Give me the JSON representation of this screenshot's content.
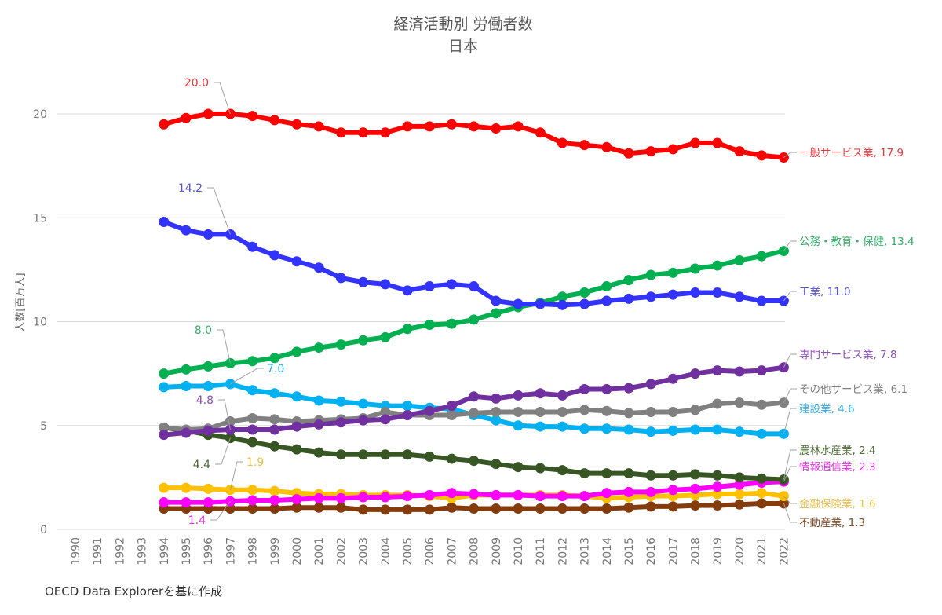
{
  "chart_data": {
    "type": "line",
    "title": "経済活動別 労働者数",
    "subtitle": "日本",
    "xlabel": "",
    "ylabel": "人数[百万人]",
    "ylim": [
      0,
      22
    ],
    "yticks": [
      0,
      5,
      10,
      15,
      20
    ],
    "grid": true,
    "legend": "none (end-of-line labels, right)",
    "x": [
      1990,
      1991,
      1992,
      1993,
      1994,
      1995,
      1996,
      1997,
      1998,
      1999,
      2000,
      2001,
      2002,
      2003,
      2004,
      2005,
      2006,
      2007,
      2008,
      2009,
      2010,
      2011,
      2012,
      2013,
      2014,
      2015,
      2016,
      2017,
      2018,
      2019,
      2020,
      2021,
      2022
    ],
    "series": [
      {
        "name": "一般サービス業",
        "color": "#ff0000",
        "label_color": "#e8383d",
        "end_label": "一般サービス業, 17.9",
        "annotation": {
          "year": 1997,
          "text": "20.0"
        },
        "values": [
          null,
          null,
          null,
          null,
          19.5,
          19.8,
          20.0,
          20.0,
          19.9,
          19.7,
          19.5,
          19.4,
          19.1,
          19.1,
          19.1,
          19.4,
          19.4,
          19.5,
          19.4,
          19.3,
          19.4,
          19.1,
          18.6,
          18.5,
          18.4,
          18.1,
          18.2,
          18.3,
          18.6,
          18.6,
          18.2,
          18.0,
          17.9
        ]
      },
      {
        "name": "工業",
        "color": "#3333ff",
        "label_color": "#5555cc",
        "end_label": "工業, 11.0",
        "annotation": {
          "year": 1997,
          "text": "14.2"
        },
        "values": [
          null,
          null,
          null,
          null,
          14.8,
          14.4,
          14.2,
          14.2,
          13.6,
          13.2,
          12.9,
          12.6,
          12.1,
          11.9,
          11.8,
          11.5,
          11.7,
          11.8,
          11.7,
          11.0,
          10.85,
          10.85,
          10.8,
          10.85,
          11.0,
          11.1,
          11.2,
          11.3,
          11.4,
          11.4,
          11.2,
          11.0,
          11.0
        ]
      },
      {
        "name": "公務・教育・保健",
        "color": "#00b050",
        "label_color": "#33aa66",
        "end_label": "公務・教育・保健, 13.4",
        "annotation": {
          "year": 1997,
          "text": "8.0"
        },
        "values": [
          null,
          null,
          null,
          null,
          7.5,
          7.7,
          7.85,
          8.0,
          8.1,
          8.25,
          8.55,
          8.75,
          8.9,
          9.1,
          9.25,
          9.65,
          9.85,
          9.9,
          10.1,
          10.4,
          10.7,
          10.9,
          11.2,
          11.4,
          11.7,
          12.0,
          12.25,
          12.35,
          12.55,
          12.7,
          12.95,
          13.15,
          13.4
        ]
      },
      {
        "name": "専門サービス業",
        "color": "#7030a0",
        "label_color": "#8a4fb0",
        "end_label": "専門サービス業, 7.8",
        "annotation": {
          "year": 1997,
          "text": "4.8"
        },
        "values": [
          null,
          null,
          null,
          null,
          4.55,
          4.65,
          4.75,
          4.8,
          4.8,
          4.8,
          4.95,
          5.05,
          5.15,
          5.25,
          5.3,
          5.5,
          5.7,
          5.95,
          6.4,
          6.3,
          6.45,
          6.55,
          6.45,
          6.75,
          6.75,
          6.8,
          7.0,
          7.25,
          7.5,
          7.65,
          7.6,
          7.65,
          7.8
        ]
      },
      {
        "name": "その他サービス業",
        "color": "#808080",
        "label_color": "#808080",
        "end_label": "その他サービス業, 6.1",
        "values": [
          null,
          null,
          null,
          null,
          4.9,
          4.8,
          4.85,
          5.2,
          5.35,
          5.3,
          5.2,
          5.25,
          5.3,
          5.35,
          5.65,
          5.5,
          5.5,
          5.5,
          5.6,
          5.65,
          5.65,
          5.65,
          5.65,
          5.75,
          5.7,
          5.6,
          5.65,
          5.65,
          5.75,
          6.05,
          6.1,
          6.0,
          6.1
        ]
      },
      {
        "name": "建設業",
        "color": "#00b0f0",
        "label_color": "#33aadd",
        "end_label": "建設業, 4.6",
        "annotation": {
          "year": 1997,
          "text": "7.0"
        },
        "values": [
          null,
          null,
          null,
          null,
          6.85,
          6.9,
          6.9,
          7.0,
          6.7,
          6.55,
          6.4,
          6.2,
          6.15,
          6.05,
          5.95,
          5.95,
          5.85,
          5.8,
          5.5,
          5.25,
          5.0,
          4.95,
          4.95,
          4.85,
          4.85,
          4.8,
          4.7,
          4.75,
          4.8,
          4.8,
          4.7,
          4.6,
          4.6
        ]
      },
      {
        "name": "農林水産業",
        "color": "#375623",
        "label_color": "#4d6b35",
        "end_label": "農林水産業, 2.4",
        "annotation": {
          "year": 1997,
          "text": "4.4"
        },
        "values": [
          null,
          null,
          null,
          null,
          4.9,
          4.75,
          4.55,
          4.4,
          4.2,
          4.0,
          3.85,
          3.7,
          3.6,
          3.6,
          3.6,
          3.6,
          3.5,
          3.4,
          3.3,
          3.15,
          3.0,
          2.95,
          2.85,
          2.7,
          2.7,
          2.7,
          2.6,
          2.6,
          2.65,
          2.6,
          2.5,
          2.45,
          2.4
        ]
      },
      {
        "name": "情報通信業",
        "color": "#ff00ff",
        "label_color": "#dd33dd",
        "end_label": "情報通信業, 2.3",
        "annotation": {
          "year": 1997,
          "text": "1.4"
        },
        "values": [
          null,
          null,
          null,
          null,
          1.3,
          1.3,
          1.3,
          1.35,
          1.4,
          1.4,
          1.45,
          1.5,
          1.5,
          1.55,
          1.55,
          1.6,
          1.65,
          1.75,
          1.7,
          1.65,
          1.65,
          1.6,
          1.6,
          1.6,
          1.75,
          1.8,
          1.8,
          1.9,
          1.95,
          2.05,
          2.15,
          2.25,
          2.3
        ]
      },
      {
        "name": "金融保険業",
        "color": "#ffc000",
        "label_color": "#e8c04a",
        "end_label": "金融保険業, 1.6",
        "annotation": {
          "year": 1997,
          "text": "1.9"
        },
        "values": [
          null,
          null,
          null,
          null,
          2.0,
          2.0,
          1.95,
          1.9,
          1.9,
          1.85,
          1.75,
          1.7,
          1.7,
          1.65,
          1.65,
          1.65,
          1.6,
          1.5,
          1.65,
          1.65,
          1.65,
          1.65,
          1.65,
          1.6,
          1.5,
          1.55,
          1.6,
          1.6,
          1.65,
          1.7,
          1.7,
          1.75,
          1.6
        ]
      },
      {
        "name": "不動産業",
        "color": "#843c0c",
        "label_color": "#7a4a2a",
        "end_label": "不動産業, 1.3",
        "values": [
          null,
          null,
          null,
          null,
          1.0,
          1.0,
          1.0,
          1.0,
          1.0,
          1.0,
          1.05,
          1.05,
          1.05,
          0.95,
          0.95,
          0.95,
          0.95,
          1.05,
          1.0,
          1.0,
          1.0,
          1.0,
          1.0,
          1.0,
          1.0,
          1.05,
          1.1,
          1.1,
          1.15,
          1.15,
          1.2,
          1.25,
          1.25
        ]
      }
    ]
  },
  "footer": {
    "source": "OECD Data Explorerを基に作成"
  }
}
